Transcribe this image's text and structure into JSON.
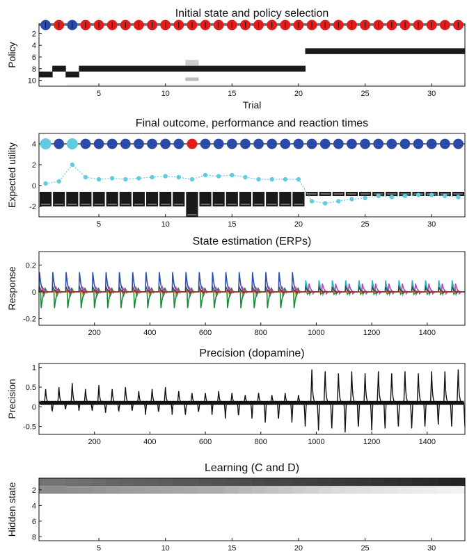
{
  "chart_data": [
    {
      "type": "heatmap",
      "title": "Initial state and policy selection",
      "xlabel": "Trial",
      "ylabel": "Policy",
      "xlim": [
        0.5,
        32.5
      ],
      "ylim": [
        1,
        11
      ],
      "xticks": [
        5,
        10,
        15,
        20,
        25,
        30
      ],
      "yticks": [
        2,
        4,
        6,
        8,
        10
      ],
      "initial_state_colors": [
        "blue",
        "red",
        "blue",
        "red",
        "red",
        "red",
        "red",
        "red",
        "red",
        "red",
        "red",
        "red",
        "red",
        "red",
        "red",
        "red",
        "red",
        "red",
        "red",
        "red",
        "red",
        "red",
        "red",
        "red",
        "red",
        "red",
        "red",
        "red",
        "red",
        "red",
        "red",
        "red"
      ],
      "selected_policy": [
        9,
        8,
        9,
        8,
        8,
        8,
        8,
        8,
        8,
        8,
        8,
        8,
        8,
        8,
        8,
        8,
        8,
        8,
        8,
        8,
        5,
        5,
        5,
        5,
        5,
        5,
        5,
        5,
        5,
        5,
        5,
        5
      ],
      "uncertain_trial": 12
    },
    {
      "type": "bar",
      "title": "Final outcome, performance and reaction times",
      "ylabel": "Expected utility",
      "xlim": [
        0.5,
        32.5
      ],
      "ylim": [
        -3,
        5
      ],
      "xticks": [
        5,
        10,
        15,
        20,
        25,
        30
      ],
      "yticks": [
        -2,
        0,
        2,
        4
      ],
      "outcome_colors": [
        "cyan",
        "blue",
        "cyan",
        "blue",
        "blue",
        "blue",
        "blue",
        "blue",
        "blue",
        "blue",
        "blue",
        "red",
        "blue",
        "blue",
        "blue",
        "blue",
        "blue",
        "blue",
        "blue",
        "blue",
        "blue",
        "blue",
        "blue",
        "blue",
        "blue",
        "blue",
        "blue",
        "blue",
        "blue",
        "blue",
        "blue",
        "blue"
      ],
      "expected_utility": [
        -2,
        -2,
        -2,
        -2,
        -2,
        -2,
        -2,
        -2,
        -2,
        -2,
        -2,
        -3,
        -2,
        -2,
        -2,
        -2,
        -2,
        -2,
        -2,
        -2,
        -1,
        -1,
        -1,
        -1,
        -1,
        -1,
        -1,
        -1,
        -1,
        -1,
        -1,
        -1
      ],
      "reaction_times": [
        0.2,
        0.4,
        2.0,
        0.8,
        0.6,
        0.7,
        0.6,
        0.7,
        0.8,
        0.9,
        0.8,
        0.6,
        1.0,
        0.9,
        1.0,
        0.8,
        0.6,
        0.6,
        0.6,
        0.6,
        -1.5,
        -1.7,
        -1.5,
        -1.3,
        -1.2,
        -1.0,
        -1.1,
        -1.0,
        -0.9,
        -0.9,
        -1.0,
        -1.1
      ]
    },
    {
      "type": "line",
      "title": "State estimation  (ERPs)",
      "ylabel": "Response",
      "xlim": [
        0,
        1536
      ],
      "ylim": [
        -0.25,
        0.3
      ],
      "xticks": [
        200,
        400,
        600,
        800,
        1000,
        1200,
        1400
      ],
      "yticks": [
        -0.2,
        0,
        0.2
      ],
      "switch_sample": 960,
      "transient_spacing": 48,
      "series": [
        {
          "color": "#2b4fb0",
          "amplitude_before": 0.24,
          "amplitude_after": 0.06
        },
        {
          "color": "#1a8a3a",
          "amplitude_before": -0.2,
          "amplitude_after": -0.03
        },
        {
          "color": "#c040c0",
          "amplitude_before": 0.05,
          "amplitude_after": 0.1
        },
        {
          "color": "#22b5c0",
          "amplitude_before": 0.02,
          "amplitude_after": 0.14
        },
        {
          "color": "#d82020",
          "amplitude_before": 0.02,
          "amplitude_after": 0.02
        },
        {
          "color": "#d8a020",
          "amplitude_before": -0.03,
          "amplitude_after": -0.02
        },
        {
          "color": "#444444",
          "amplitude_before": 0.06,
          "amplitude_after": 0.06
        }
      ]
    },
    {
      "type": "line",
      "title": "Precision  (dopamine)",
      "ylabel": "Precision",
      "xlim": [
        0,
        1536
      ],
      "ylim": [
        -0.7,
        1.1
      ],
      "xticks": [
        200,
        400,
        600,
        800,
        1000,
        1200,
        1400
      ],
      "yticks": [
        -0.5,
        0,
        0.5,
        1
      ],
      "switch_sample": 960,
      "transient_spacing": 48,
      "peak_before": [
        0.45,
        0.5,
        0.6,
        0.45,
        0.55,
        0.45,
        0.5,
        0.4,
        0.45,
        0.5,
        0.4,
        0.35,
        0.35,
        0.4,
        0.35,
        0.3,
        0.35,
        0.3,
        0.35,
        0.3
      ],
      "trough_before": [
        -0.15,
        -0.1,
        -0.05,
        -0.1,
        -0.1,
        -0.15,
        -0.1,
        -0.1,
        -0.2,
        -0.1,
        -0.2,
        -0.2,
        -0.1,
        -0.2,
        -0.3,
        -0.2,
        -0.3,
        -0.4,
        -0.3,
        -0.4
      ],
      "peak_after": [
        0.95,
        0.9,
        0.85,
        0.9,
        0.85,
        0.9,
        0.85,
        0.9,
        0.85,
        0.9,
        0.9,
        0.95
      ],
      "trough_after": [
        -0.5,
        -0.6,
        -0.55,
        -0.65,
        -0.5,
        -0.6,
        -0.55,
        -0.5,
        -0.55,
        -0.5,
        -0.45,
        -0.5
      ],
      "baseline": 0.1
    },
    {
      "type": "heatmap",
      "title": "Learning (C and D)",
      "ylabel": "Hidden state",
      "xlim": [
        0.5,
        32.5
      ],
      "ylim": [
        0.5,
        8.5
      ],
      "xticks": [
        5,
        10,
        15,
        20,
        25,
        30
      ],
      "yticks": [
        2,
        4,
        6,
        8
      ],
      "state1_intensity": [
        0.55,
        0.55,
        0.56,
        0.57,
        0.58,
        0.6,
        0.61,
        0.62,
        0.63,
        0.64,
        0.65,
        0.66,
        0.67,
        0.68,
        0.69,
        0.7,
        0.71,
        0.72,
        0.73,
        0.74,
        0.75,
        0.76,
        0.77,
        0.78,
        0.79,
        0.8,
        0.81,
        0.82,
        0.83,
        0.84,
        0.85,
        0.86
      ],
      "state2_intensity": [
        0.45,
        0.45,
        0.44,
        0.43,
        0.42,
        0.4,
        0.39,
        0.38,
        0.37,
        0.36,
        0.35,
        0.34,
        0.33,
        0.32,
        0.3,
        0.28,
        0.26,
        0.24,
        0.22,
        0.2,
        0.18,
        0.16,
        0.14,
        0.13,
        0.12,
        0.11,
        0.1,
        0.09,
        0.08,
        0.07,
        0.06,
        0.05
      ]
    }
  ]
}
